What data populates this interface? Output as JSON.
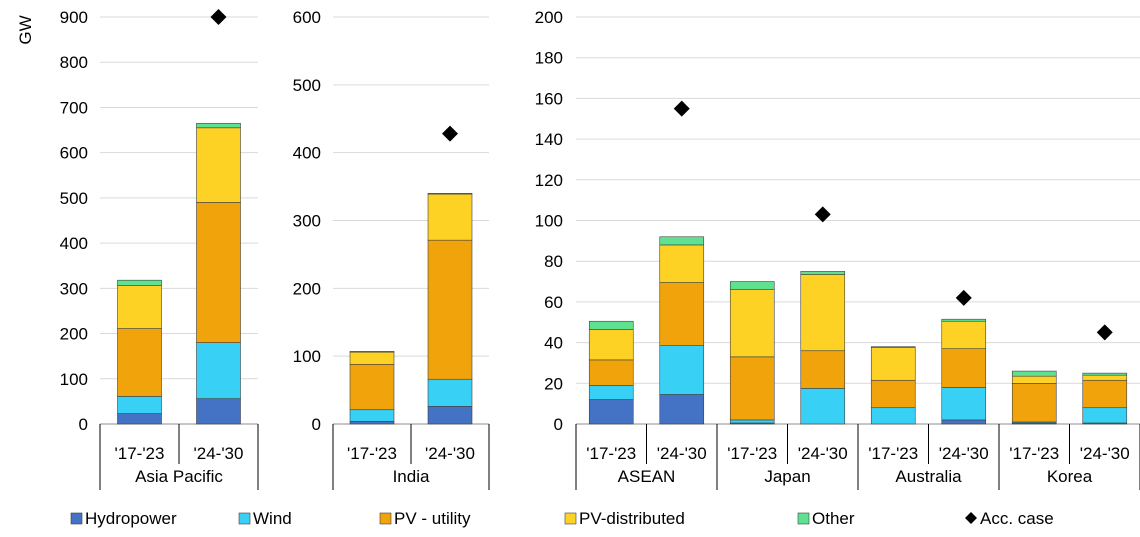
{
  "chart_data": {
    "type": "bar",
    "subtype": "stacked",
    "unit_label": "GW",
    "legend_position": "bottom",
    "grid": true,
    "series_names": [
      "Hydropower",
      "Wind",
      "PV - utility",
      "PV-distributed",
      "Other"
    ],
    "marker_name": "Acc. case",
    "colors": {
      "Hydropower": "#4472c4",
      "Wind": "#38d0f5",
      "PV - utility": "#f0a30a",
      "PV-distributed": "#fdd225",
      "Other": "#5ee28f",
      "Acc. case": "#000000"
    },
    "panels": [
      {
        "ylim": [
          0,
          900
        ],
        "yticks": [
          "0",
          "100",
          "200",
          "300",
          "400",
          "500",
          "600",
          "700",
          "800",
          "900"
        ],
        "groups": [
          {
            "name": "Asia Pacific",
            "periods": [
              "'17-'23",
              "'24-'30"
            ],
            "stacks": [
              {
                "Hydropower": 23,
                "Wind": 38,
                "PV - utility": 150,
                "PV-distributed": 95,
                "Other": 12
              },
              {
                "Hydropower": 56,
                "Wind": 124,
                "PV - utility": 310,
                "PV-distributed": 165,
                "Other": 10
              }
            ],
            "acc_case": [
              null,
              900
            ]
          }
        ]
      },
      {
        "ylim": [
          0,
          600
        ],
        "yticks": [
          "0",
          "100",
          "200",
          "300",
          "400",
          "500",
          "600"
        ],
        "groups": [
          {
            "name": "India",
            "periods": [
              "'17-'23",
              "'24-'30"
            ],
            "stacks": [
              {
                "Hydropower": 4,
                "Wind": 17,
                "PV - utility": 67,
                "PV-distributed": 18,
                "Other": 1
              },
              {
                "Hydropower": 26,
                "Wind": 40,
                "PV - utility": 205,
                "PV-distributed": 68,
                "Other": 1
              }
            ],
            "acc_case": [
              null,
              428
            ]
          }
        ]
      },
      {
        "ylim": [
          0,
          200
        ],
        "yticks": [
          "0",
          "20",
          "40",
          "60",
          "80",
          "100",
          "120",
          "140",
          "160",
          "180",
          "200"
        ],
        "groups": [
          {
            "name": "ASEAN",
            "periods": [
              "'17-'23",
              "'24-'30"
            ],
            "stacks": [
              {
                "Hydropower": 12,
                "Wind": 7,
                "PV - utility": 12.5,
                "PV-distributed": 15,
                "Other": 4
              },
              {
                "Hydropower": 14.5,
                "Wind": 24,
                "PV - utility": 31,
                "PV-distributed": 18.5,
                "Other": 4
              }
            ],
            "acc_case": [
              null,
              155
            ]
          },
          {
            "name": "Japan",
            "periods": [
              "'17-'23",
              "'24-'30"
            ],
            "stacks": [
              {
                "Hydropower": 0.5,
                "Wind": 1.5,
                "PV - utility": 31,
                "PV-distributed": 33,
                "Other": 4
              },
              {
                "Hydropower": 0,
                "Wind": 17.5,
                "PV - utility": 18.5,
                "PV-distributed": 37.5,
                "Other": 1.5
              }
            ],
            "acc_case": [
              null,
              103
            ]
          },
          {
            "name": "Australia",
            "periods": [
              "'17-'23",
              "'24-'30"
            ],
            "stacks": [
              {
                "Hydropower": 0,
                "Wind": 8,
                "PV - utility": 13.5,
                "PV-distributed": 16,
                "Other": 0.5
              },
              {
                "Hydropower": 2,
                "Wind": 16,
                "PV - utility": 19,
                "PV-distributed": 13.5,
                "Other": 1
              }
            ],
            "acc_case": [
              null,
              62
            ]
          },
          {
            "name": "Korea",
            "periods": [
              "'17-'23",
              "'24-'30"
            ],
            "stacks": [
              {
                "Hydropower": 0.5,
                "Wind": 0.5,
                "PV - utility": 19,
                "PV-distributed": 3.5,
                "Other": 2.5
              },
              {
                "Hydropower": 0.5,
                "Wind": 7.5,
                "PV - utility": 13.5,
                "PV-distributed": 2.5,
                "Other": 1
              }
            ],
            "acc_case": [
              null,
              45
            ]
          }
        ]
      }
    ]
  }
}
